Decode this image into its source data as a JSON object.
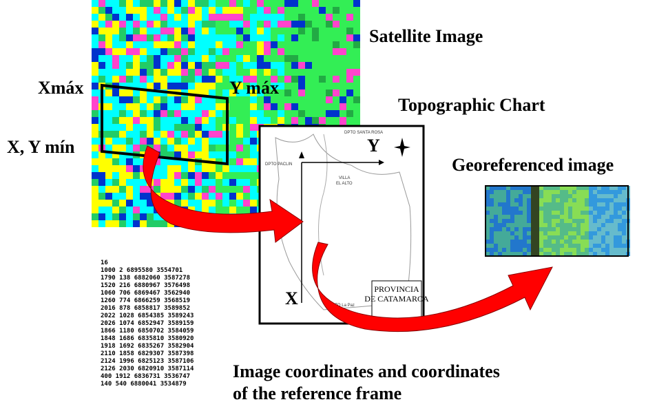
{
  "labels": {
    "satellite": "Satellite Image",
    "xmax": "Xmáx",
    "ymax": "Y máx",
    "xymin": "X, Y mín",
    "topographic": "Topographic Chart",
    "georeferenced": "Georeferenced image",
    "axis_y": "Y",
    "axis_x": "X"
  },
  "map_texts": {
    "santa_rosa": "DPTO SANTA ROSA",
    "paclin": "DPTO PACLIN",
    "villa": "VILLA",
    "el_alto": "EL ALTO",
    "provincia": "PROVINCIA",
    "catamarca": "DE CATAMARCA",
    "la_paz": "DPTO La Paz"
  },
  "coordinates": {
    "count": "16",
    "rows": [
      "1000 2 6895580 3554701",
      "1790 138 6882060 3587278",
      "1520 216 6880967 3576498",
      "1060 706 6869467 3562940",
      "1260 774 6866259 3568519",
      "2016 878 6858817 3589852",
      "2022 1028 6854385 3589243",
      "2026 1074 6852947 3589159",
      "1866 1180 6850702 3584059",
      "1848 1686 6835810 3580920",
      "1918 1692 6835267 3582904",
      "2110 1858 6829307 3587398",
      "2124 1996 6825123 3587106",
      "2126 2030 6820910 3587114",
      "400 1912 6836731 3536747",
      "140 540 6880041 3534879"
    ]
  },
  "caption": {
    "line1": "Image coordinates and coordinates",
    "line2": "of the reference frame"
  }
}
